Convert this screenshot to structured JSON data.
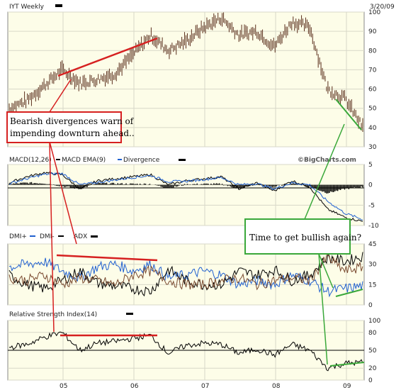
{
  "header": {
    "symbol_label": "IYT Weekly",
    "date": "3/20/09"
  },
  "watermark": "©BigCharts.com",
  "colors": {
    "price_bar": "#5a2e1c",
    "panel_bg": "#fdfde8",
    "plus_di": "#2060d0",
    "minus_di": "#000000",
    "adx": "#7a4a30",
    "annotation_red": "#d62020",
    "annotation_green": "#3aa83a"
  },
  "panels": {
    "price": {
      "legend": "IYT Weekly"
    },
    "macd": {
      "legend": [
        {
          "text": "MACD(12,26)",
          "color": "#000000"
        },
        {
          "text": "MACD EMA(9)",
          "color": "#2060d0"
        },
        {
          "text": "Divergence",
          "color": "#7a4a30"
        }
      ]
    },
    "dmi": {
      "legend": [
        {
          "text": "DMI+",
          "color": "#2060d0"
        },
        {
          "text": "DMI-",
          "color": "#000000"
        },
        {
          "text": "ADX",
          "color": "#7a4a30"
        }
      ]
    },
    "rsi": {
      "legend": "Relative Strength Index(14)"
    }
  },
  "annotations": {
    "bearish": "Bearish divergences warn of impending downturn ahead..",
    "bearish_lines": [
      "Bearish divergences warn of",
      "impending downturn ahead.."
    ],
    "bullish": "Time to get bullish again?"
  },
  "chart_data": [
    {
      "type": "bar",
      "name_as_printed": "IYT Weekly",
      "x_ticks": [
        "05",
        "06",
        "07",
        "08",
        "09"
      ],
      "ylim": [
        30,
        100
      ],
      "y_ticks": [
        30,
        40,
        50,
        60,
        70,
        80,
        90,
        100
      ],
      "x": [
        "2004-04",
        "2004-07",
        "2004-10",
        "2005-01",
        "2005-04",
        "2005-07",
        "2005-10",
        "2006-01",
        "2006-04",
        "2006-07",
        "2006-10",
        "2007-01",
        "2007-04",
        "2007-07",
        "2007-10",
        "2008-01",
        "2008-04",
        "2008-07",
        "2008-10",
        "2009-01",
        "2009-03"
      ],
      "close": [
        50,
        54,
        62,
        70,
        63,
        65,
        68,
        78,
        88,
        80,
        85,
        92,
        97,
        88,
        90,
        82,
        95,
        92,
        60,
        55,
        40
      ]
    },
    {
      "type": "line",
      "name_as_printed": "MACD(12,26)",
      "ylim": [
        -10,
        5
      ],
      "y_ticks": [
        -10,
        -5,
        0,
        5
      ],
      "series": [
        {
          "name": "MACD(12,26)",
          "values": [
            0.5,
            2,
            3,
            2.5,
            -1,
            1,
            1.5,
            2,
            2.5,
            0,
            1,
            1.5,
            2,
            -1,
            0.5,
            -1.5,
            1,
            -0.5,
            -6,
            -8,
            -9
          ]
        },
        {
          "name": "MACD EMA(9)",
          "values": [
            0.3,
            1.5,
            2.6,
            2.8,
            0,
            0.6,
            1.2,
            1.8,
            2.3,
            0.8,
            0.9,
            1.3,
            1.8,
            0,
            0.3,
            -1,
            0.5,
            0,
            -4,
            -7,
            -8.5
          ]
        },
        {
          "name": "Divergence",
          "values": [
            0.2,
            0.5,
            0.4,
            -0.3,
            -1,
            0.4,
            0.3,
            0.2,
            0.2,
            -0.8,
            0.1,
            0.2,
            0.2,
            -1,
            0.2,
            -0.5,
            0.5,
            -0.5,
            -2,
            -1,
            -0.5
          ]
        }
      ]
    },
    {
      "type": "line",
      "name_as_printed": "DMI",
      "ylim": [
        0,
        45
      ],
      "y_ticks": [
        0,
        15,
        30,
        45
      ],
      "series": [
        {
          "name": "DMI+",
          "values": [
            28,
            30,
            32,
            25,
            20,
            28,
            30,
            25,
            30,
            20,
            22,
            25,
            22,
            15,
            18,
            15,
            22,
            18,
            10,
            12,
            14
          ]
        },
        {
          "name": "DMI-",
          "values": [
            22,
            15,
            12,
            18,
            25,
            16,
            14,
            12,
            10,
            26,
            18,
            15,
            15,
            25,
            22,
            26,
            18,
            22,
            35,
            32,
            36
          ]
        },
        {
          "name": "ADX",
          "values": [
            20,
            18,
            22,
            15,
            20,
            18,
            15,
            22,
            25,
            18,
            15,
            15,
            18,
            20,
            15,
            18,
            20,
            18,
            35,
            25,
            28
          ]
        }
      ]
    },
    {
      "type": "line",
      "name_as_printed": "Relative Strength Index(14)",
      "ylim": [
        0,
        100
      ],
      "y_ticks": [
        0,
        20,
        50,
        80,
        100
      ],
      "series": [
        {
          "name": "Relative Strength Index(14)",
          "values": [
            55,
            60,
            72,
            80,
            50,
            62,
            65,
            70,
            75,
            45,
            58,
            62,
            60,
            45,
            52,
            42,
            60,
            50,
            20,
            28,
            30
          ]
        }
      ]
    }
  ]
}
